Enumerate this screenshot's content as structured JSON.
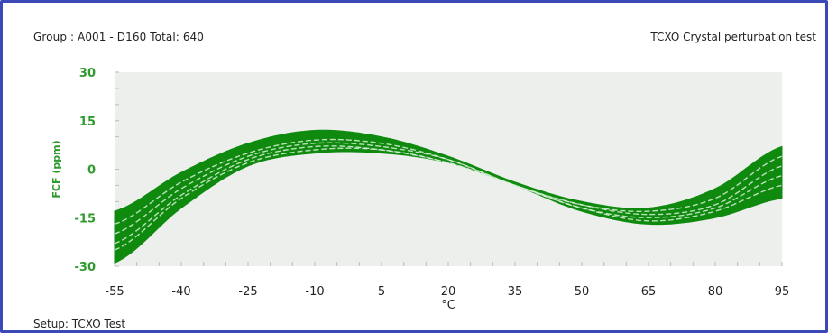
{
  "header": {
    "group": "Group : A001 - D160  Total: 640",
    "test_name": "TCXO Crystal perturbation test"
  },
  "footer": {
    "setup": "Setup: TCXO Test"
  },
  "colors": {
    "frame": "#3a48b8",
    "plot_bg": "#ecefec",
    "series": "#0f8a0f",
    "axis_tick_y": "#2e9a2e"
  },
  "chart_data": {
    "type": "line",
    "title": "",
    "xlabel": "°C",
    "ylabel": "FCF (ppm)",
    "xlim": [
      -55,
      95
    ],
    "ylim": [
      -30,
      30
    ],
    "x_ticks": [
      "-55",
      "-40",
      "-25",
      "-10",
      "5",
      "20",
      "35",
      "50",
      "65",
      "80",
      "95"
    ],
    "y_ticks": [
      "30",
      "15",
      "0",
      "-15",
      "-30"
    ],
    "grid": false,
    "legend": "none",
    "series_count": 640,
    "envelope": {
      "x": [
        -55,
        -40,
        -25,
        -10,
        5,
        20,
        35,
        50,
        65,
        80,
        95
      ],
      "upper": [
        -13,
        -1,
        8,
        12,
        10,
        4,
        -4,
        -10,
        -12,
        -6,
        7
      ],
      "lower": [
        -29,
        -12,
        1,
        5,
        5,
        2,
        -5,
        -13,
        -17,
        -15,
        -9
      ]
    },
    "highlight_series": [
      {
        "x": [
          -55,
          -40,
          -25,
          -10,
          5,
          20,
          35,
          50,
          65,
          80,
          95
        ],
        "y": [
          -17,
          -4,
          5,
          9,
          8,
          3,
          -5,
          -11,
          -13,
          -9,
          4
        ]
      },
      {
        "x": [
          -55,
          -40,
          -25,
          -10,
          5,
          20,
          35,
          50,
          65,
          80,
          95
        ],
        "y": [
          -20,
          -6,
          4,
          8,
          7,
          3,
          -5,
          -11,
          -14,
          -11,
          1
        ]
      },
      {
        "x": [
          -55,
          -40,
          -25,
          -10,
          5,
          20,
          35,
          50,
          65,
          80,
          95
        ],
        "y": [
          -23,
          -8,
          3,
          7,
          6,
          2,
          -5,
          -12,
          -15,
          -12,
          -2
        ]
      },
      {
        "x": [
          -55,
          -40,
          -25,
          -10,
          5,
          20,
          35,
          50,
          65,
          80,
          95
        ],
        "y": [
          -25,
          -9,
          2,
          6,
          6,
          2,
          -5,
          -12,
          -16,
          -13,
          -5
        ]
      }
    ]
  }
}
